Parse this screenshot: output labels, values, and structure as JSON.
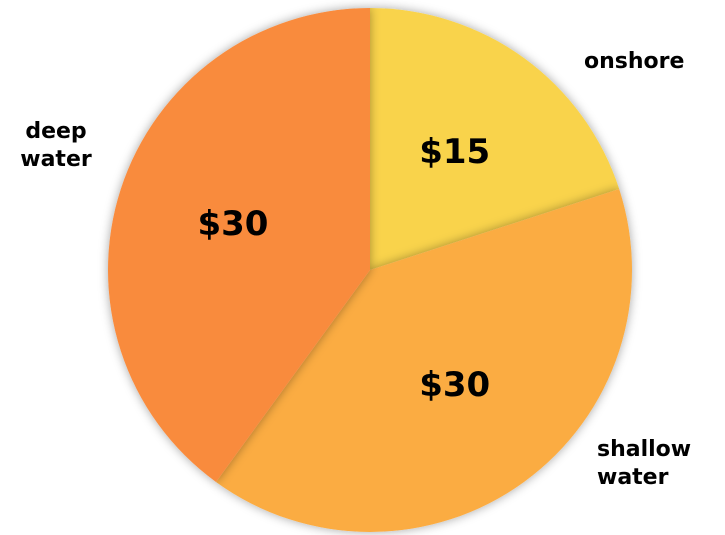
{
  "chart_data": {
    "type": "pie",
    "categories": [
      "onshore",
      "shallow water",
      "deep water"
    ],
    "values": [
      15,
      30,
      30
    ],
    "value_labels": [
      "$15",
      "$30",
      "$30"
    ],
    "colors": [
      "#f9d34c",
      "#fbac43",
      "#f98b3c"
    ]
  }
}
